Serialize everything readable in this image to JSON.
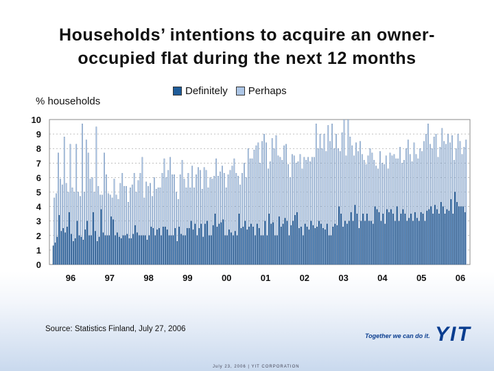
{
  "title_line1": "Households’ intentions to acquire an owner-",
  "title_line2": "occupied flat during the next 12 months",
  "y_caption": "% households",
  "source": "Source: Statistics Finland, July 27, 2006",
  "slogan": "Together we can do it.",
  "logo": "YIT",
  "footer": "July 23, 2006 | YIT CORPORATION",
  "colors": {
    "definitely": "#1f5c99",
    "perhaps": "#adc6e6",
    "grid": "#999999"
  },
  "chart_data": {
    "type": "bar",
    "stacked": false,
    "legend_position": "top",
    "x_tick_labels": [
      "96",
      "97",
      "98",
      "99",
      "00",
      "01",
      "02",
      "03",
      "04",
      "05",
      "06"
    ],
    "y_ticks": [
      0,
      1,
      2,
      3,
      4,
      5,
      6,
      7,
      8,
      9,
      10
    ],
    "ylim": [
      0,
      10
    ],
    "grid": "horizontal dashed",
    "series": [
      {
        "name": "Definitely",
        "values": [
          1.3,
          1.5,
          1.9,
          3.4,
          2.3,
          2.5,
          2.2,
          2.6,
          3.6,
          2.1,
          1.6,
          1.8,
          3.0,
          2.0,
          1.9,
          1.7,
          2.4,
          3.0,
          2.0,
          2.0,
          3.6,
          2.3,
          1.6,
          1.9,
          3.8,
          2.2,
          2.0,
          2.0,
          2.0,
          3.3,
          3.1,
          2.0,
          2.2,
          1.9,
          1.8,
          2.0,
          2.0,
          2.1,
          1.8,
          1.8,
          2.1,
          2.7,
          2.2,
          2.0,
          2.0,
          2.0,
          2.0,
          1.7,
          2.0,
          2.6,
          2.5,
          2.0,
          2.4,
          2.5,
          2.0,
          2.6,
          2.6,
          2.4,
          2.0,
          2.0,
          2.0,
          2.5,
          1.6,
          2.6,
          2.1,
          2.0,
          2.0,
          2.5,
          2.5,
          3.0,
          2.4,
          2.8,
          2.0,
          2.5,
          2.8,
          1.9,
          2.8,
          3.0,
          2.0,
          2.0,
          2.7,
          3.5,
          2.6,
          2.8,
          2.9,
          3.1,
          2.0,
          2.0,
          2.4,
          2.2,
          2.0,
          2.3,
          2.0,
          3.5,
          2.5,
          2.6,
          3.0,
          2.4,
          2.6,
          2.8,
          2.6,
          2.0,
          2.8,
          2.5,
          2.0,
          2.0,
          3.0,
          2.0,
          3.5,
          2.8,
          2.9,
          2.0,
          2.0,
          3.3,
          2.6,
          2.8,
          3.2,
          3.0,
          2.0,
          2.7,
          3.0,
          3.4,
          3.6,
          2.5,
          2.6,
          2.0,
          2.8,
          2.6,
          2.4,
          3.0,
          2.7,
          2.5,
          2.6,
          3.0,
          2.8,
          2.5,
          2.4,
          2.8,
          2.0,
          2.0,
          2.6,
          2.8,
          2.7,
          4.0,
          3.5,
          2.6,
          3.0,
          2.8,
          3.0,
          3.6,
          3.0,
          4.1,
          3.5,
          2.5,
          3.0,
          3.5,
          3.0,
          3.5,
          3.0,
          3.0,
          2.8,
          4.0,
          3.8,
          3.6,
          3.0,
          3.5,
          2.8,
          3.8,
          3.6,
          3.8,
          3.5,
          3.0,
          4.0,
          3.0,
          3.5,
          3.8,
          3.5,
          3.0,
          3.2,
          3.5,
          3.0,
          3.6,
          3.2,
          3.0,
          3.6,
          3.5,
          3.0,
          3.7,
          3.8,
          4.0,
          3.5,
          4.1,
          3.8,
          3.5,
          4.3,
          4.0,
          3.5,
          3.8,
          3.7,
          4.5,
          3.5,
          5.0,
          4.3,
          4.0,
          4.0,
          4.0,
          3.6
        ],
        "color": "#1f5c99"
      },
      {
        "name": "Perhaps",
        "values": [
          4.6,
          4.9,
          7.7,
          5.9,
          5.5,
          8.8,
          5.6,
          5.0,
          8.3,
          5.3,
          5.0,
          8.3,
          5.0,
          4.7,
          9.7,
          5.0,
          8.6,
          7.7,
          5.9,
          6.0,
          5.0,
          9.5,
          5.4,
          4.8,
          4.8,
          7.7,
          6.2,
          4.9,
          4.8,
          4.6,
          5.9,
          4.8,
          4.5,
          5.6,
          6.3,
          5.4,
          5.4,
          4.3,
          5.3,
          5.5,
          6.3,
          5.0,
          5.8,
          6.3,
          7.4,
          4.6,
          5.7,
          5.4,
          5.6,
          4.7,
          6.0,
          5.2,
          5.3,
          5.3,
          6.3,
          7.3,
          6.0,
          6.5,
          7.4,
          6.2,
          6.2,
          5.0,
          4.5,
          6.2,
          7.2,
          5.9,
          5.3,
          6.3,
          5.3,
          6.8,
          5.3,
          6.2,
          6.7,
          6.5,
          5.2,
          6.7,
          6.5,
          5.3,
          6.0,
          5.9,
          6.1,
          7.3,
          6.1,
          6.4,
          6.8,
          6.3,
          5.3,
          6.2,
          6.5,
          6.8,
          7.3,
          6.3,
          6.1,
          5.5,
          6.3,
          7.0,
          6.0,
          8.0,
          7.3,
          7.3,
          7.9,
          8.2,
          8.4,
          7.0,
          8.5,
          9.0,
          8.4,
          6.6,
          7.1,
          8.7,
          8.0,
          8.9,
          7.5,
          7.4,
          7.2,
          8.2,
          8.3,
          6.9,
          6.0,
          7.6,
          7.5,
          7.0,
          7.1,
          7.6,
          6.6,
          7.4,
          7.2,
          7.4,
          7.1,
          7.4,
          7.4,
          9.7,
          8.0,
          9.0,
          8.0,
          9.0,
          7.8,
          9.6,
          8.5,
          9.7,
          8.0,
          9.0,
          8.0,
          7.8,
          9.1,
          10.0,
          7.5,
          10.0,
          8.8,
          8.2,
          7.5,
          8.4,
          7.8,
          8.5,
          7.6,
          7.2,
          6.9,
          7.5,
          8.0,
          7.7,
          7.2,
          6.8,
          6.6,
          7.8,
          7.0,
          6.9,
          7.5,
          6.6,
          7.7,
          7.5,
          7.6,
          7.3,
          7.3,
          8.1,
          7.0,
          7.2,
          8.0,
          8.6,
          7.6,
          7.1,
          8.4,
          7.6,
          7.3,
          8.0,
          7.8,
          8.5,
          9.0,
          9.7,
          8.3,
          8.0,
          8.8,
          9.0,
          7.4,
          8.1,
          9.4,
          8.5,
          8.3,
          9.0,
          8.4,
          8.9,
          7.2,
          8.0,
          9.0,
          8.5,
          7.6,
          8.1,
          8.6
        ],
        "color": "#adc6e6"
      }
    ]
  }
}
